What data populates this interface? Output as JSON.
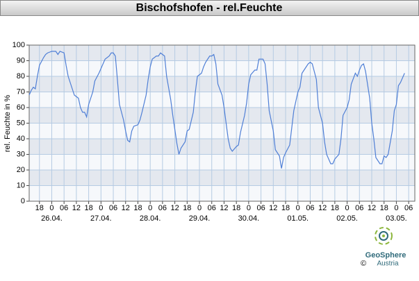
{
  "chart_data": {
    "type": "line",
    "title": "Bischofshofen - rel.Feuchte",
    "y_label": "rel. Feuchte in %",
    "color": "#4f7fd6",
    "grid": true,
    "x": [
      -11,
      -10,
      -9,
      -8,
      -7,
      -6,
      -4,
      -3,
      -2,
      0,
      2,
      3,
      4,
      6,
      7,
      8,
      10,
      11,
      13,
      14,
      15,
      16,
      17,
      18,
      19,
      20,
      21,
      23,
      24,
      25,
      26,
      28,
      29,
      30,
      31,
      32,
      33,
      35,
      36,
      37,
      38,
      39,
      40,
      42,
      43,
      44,
      46,
      47,
      48,
      49,
      51,
      52,
      53,
      55,
      56,
      58,
      59,
      61,
      62,
      63,
      65,
      66,
      67,
      69,
      70,
      71,
      73,
      74,
      75,
      77,
      78,
      79,
      80,
      81,
      83,
      84,
      86,
      87,
      88,
      90,
      91,
      92,
      94,
      95,
      96,
      97,
      99,
      100,
      101,
      103,
      104,
      105,
      106,
      108,
      109,
      111,
      112,
      113,
      114,
      116,
      117,
      118,
      120,
      121,
      122,
      124,
      125,
      126,
      127,
      129,
      130,
      132,
      133,
      134,
      136,
      137,
      138,
      140,
      141,
      142,
      144,
      145,
      146,
      148,
      149,
      150,
      151,
      152,
      153,
      155,
      156,
      157,
      158,
      160,
      161,
      162,
      163,
      164,
      166,
      167,
      168,
      169,
      170,
      172
    ],
    "values": [
      68,
      71,
      73,
      72,
      80,
      87,
      92,
      94,
      95,
      96,
      96,
      94,
      96,
      95,
      87,
      80,
      72,
      68,
      66,
      60,
      57,
      57,
      54,
      62,
      66,
      70,
      77,
      82,
      85,
      88,
      91,
      93,
      95,
      95,
      93,
      78,
      62,
      52,
      45,
      39,
      38,
      45,
      48,
      49,
      52,
      57,
      68,
      78,
      86,
      91,
      93,
      93,
      95,
      93,
      80,
      65,
      55,
      37,
      30,
      34,
      38,
      45,
      46,
      57,
      70,
      80,
      82,
      86,
      89,
      93,
      93,
      94,
      88,
      75,
      68,
      60,
      40,
      34,
      32,
      35,
      36,
      44,
      55,
      63,
      75,
      81,
      84,
      84,
      91,
      91,
      88,
      75,
      58,
      45,
      33,
      29,
      21,
      28,
      31,
      36,
      47,
      58,
      70,
      73,
      82,
      86,
      88,
      89,
      88,
      78,
      60,
      50,
      38,
      30,
      24,
      24,
      27,
      30,
      40,
      55,
      60,
      65,
      75,
      82,
      80,
      84,
      87,
      88,
      83,
      66,
      50,
      40,
      28,
      24,
      24,
      29,
      28,
      30,
      45,
      58,
      62,
      74,
      76,
      82
    ],
    "xlim": [
      -11,
      177
    ],
    "ylim": [
      0,
      100
    ],
    "yticks": [
      0,
      10,
      20,
      30,
      40,
      50,
      60,
      70,
      80,
      90,
      100
    ],
    "xticks": [
      {
        "value": -6,
        "label": "18"
      },
      {
        "value": 0,
        "label": "0"
      },
      {
        "value": 6,
        "label": "06"
      },
      {
        "value": 12,
        "label": "12"
      },
      {
        "value": 18,
        "label": "18"
      },
      {
        "value": 24,
        "label": "0"
      },
      {
        "value": 30,
        "label": "06"
      },
      {
        "value": 36,
        "label": "12"
      },
      {
        "value": 42,
        "label": "18"
      },
      {
        "value": 48,
        "label": "0"
      },
      {
        "value": 54,
        "label": "06"
      },
      {
        "value": 60,
        "label": "12"
      },
      {
        "value": 66,
        "label": "18"
      },
      {
        "value": 72,
        "label": "0"
      },
      {
        "value": 78,
        "label": "06"
      },
      {
        "value": 84,
        "label": "12"
      },
      {
        "value": 90,
        "label": "18"
      },
      {
        "value": 96,
        "label": "0"
      },
      {
        "value": 102,
        "label": "06"
      },
      {
        "value": 108,
        "label": "12"
      },
      {
        "value": 114,
        "label": "18"
      },
      {
        "value": 120,
        "label": "0"
      },
      {
        "value": 126,
        "label": "06"
      },
      {
        "value": 132,
        "label": "12"
      },
      {
        "value": 138,
        "label": "18"
      },
      {
        "value": 144,
        "label": "0"
      },
      {
        "value": 150,
        "label": "06"
      },
      {
        "value": 156,
        "label": "12"
      },
      {
        "value": 162,
        "label": "18"
      },
      {
        "value": 168,
        "label": "0"
      },
      {
        "value": 174,
        "label": "06"
      }
    ],
    "date_labels": [
      {
        "value": 0,
        "label": "26.04."
      },
      {
        "value": 24,
        "label": "27.04."
      },
      {
        "value": 48,
        "label": "28.04."
      },
      {
        "value": 72,
        "label": "29.04."
      },
      {
        "value": 96,
        "label": "30.04."
      },
      {
        "value": 120,
        "label": "01.05."
      },
      {
        "value": 144,
        "label": "02.05."
      },
      {
        "value": 168,
        "label": "03.05."
      }
    ]
  },
  "logo": {
    "name": "GeoSphere",
    "sub": "Austria",
    "copyright": "©"
  }
}
